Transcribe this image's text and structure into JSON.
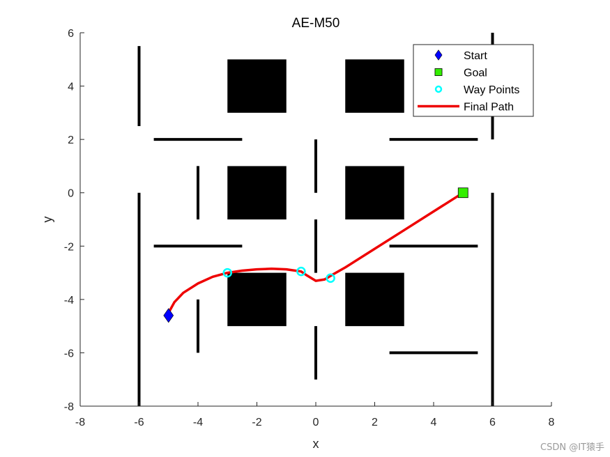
{
  "chart_data": {
    "type": "scatter",
    "title": "AE-M50",
    "xlabel": "x",
    "ylabel": "y",
    "xlim": [
      -8,
      8
    ],
    "ylim": [
      -8,
      6
    ],
    "xticks": [
      -8,
      -6,
      -4,
      -2,
      0,
      2,
      4,
      6,
      8
    ],
    "yticks": [
      -8,
      -6,
      -4,
      -2,
      0,
      2,
      4,
      6
    ],
    "grid": false,
    "legend_placement": "top-right",
    "obstacles": [
      {
        "x0": -3,
        "y0": 3,
        "x1": -1,
        "y1": 5
      },
      {
        "x0": 1,
        "y0": 3,
        "x1": 3,
        "y1": 5
      },
      {
        "x0": -3,
        "y0": -1,
        "x1": -1,
        "y1": 1
      },
      {
        "x0": 1,
        "y0": -1,
        "x1": 3,
        "y1": 1
      },
      {
        "x0": -3,
        "y0": -5,
        "x1": -1,
        "y1": -3
      },
      {
        "x0": 1,
        "y0": -5,
        "x1": 3,
        "y1": -3
      }
    ],
    "walls": [
      {
        "x1": -6,
        "y1": 5.5,
        "x2": -6,
        "y2": 2.5
      },
      {
        "x1": -6,
        "y1": 0,
        "x2": -6,
        "y2": -8
      },
      {
        "x1": 6,
        "y1": 6,
        "x2": 6,
        "y2": 2
      },
      {
        "x1": 6,
        "y1": 0,
        "x2": 6,
        "y2": -8
      },
      {
        "x1": -5.5,
        "y1": 2,
        "x2": -2.5,
        "y2": 2
      },
      {
        "x1": 2.5,
        "y1": 2,
        "x2": 5.5,
        "y2": 2
      },
      {
        "x1": -5.5,
        "y1": -2,
        "x2": -2.5,
        "y2": -2
      },
      {
        "x1": 2.5,
        "y1": -2,
        "x2": 5.5,
        "y2": -2
      },
      {
        "x1": 2.5,
        "y1": -6,
        "x2": 5.5,
        "y2": -6
      },
      {
        "x1": -4,
        "y1": 1,
        "x2": -4,
        "y2": -1
      },
      {
        "x1": -4,
        "y1": -4,
        "x2": -4,
        "y2": -6
      },
      {
        "x1": 0,
        "y1": 2,
        "x2": 0,
        "y2": 0
      },
      {
        "x1": 0,
        "y1": -1,
        "x2": 0,
        "y2": -3
      },
      {
        "x1": 0,
        "y1": -5,
        "x2": 0,
        "y2": -7
      }
    ],
    "series": [
      {
        "name": "Start",
        "x": [
          -5
        ],
        "y": [
          -4.6
        ],
        "color": "#0000ff",
        "marker": "diamond"
      },
      {
        "name": "Goal",
        "x": [
          5
        ],
        "y": [
          0
        ],
        "color": "#33ee00",
        "marker": "square"
      },
      {
        "name": "Way Points",
        "x": [
          -3,
          -0.5,
          0.5
        ],
        "y": [
          -3,
          -2.95,
          -3.2
        ],
        "color": "#00ffff",
        "marker": "circle"
      },
      {
        "name": "Final Path",
        "color": "#ee0000",
        "marker": "line",
        "x": [
          -5,
          -4.8,
          -4.5,
          -4,
          -3.5,
          -3,
          -2.5,
          -2,
          -1.5,
          -1,
          -0.5,
          -0.3,
          0,
          0.3,
          0.6,
          1,
          2,
          3,
          4,
          5
        ],
        "y": [
          -4.5,
          -4.1,
          -3.75,
          -3.4,
          -3.15,
          -3,
          -2.92,
          -2.87,
          -2.85,
          -2.87,
          -2.95,
          -3.1,
          -3.3,
          -3.25,
          -3.05,
          -2.8,
          -2.1,
          -1.4,
          -0.7,
          0
        ]
      }
    ]
  },
  "watermark": "CSDN @IT猿手"
}
